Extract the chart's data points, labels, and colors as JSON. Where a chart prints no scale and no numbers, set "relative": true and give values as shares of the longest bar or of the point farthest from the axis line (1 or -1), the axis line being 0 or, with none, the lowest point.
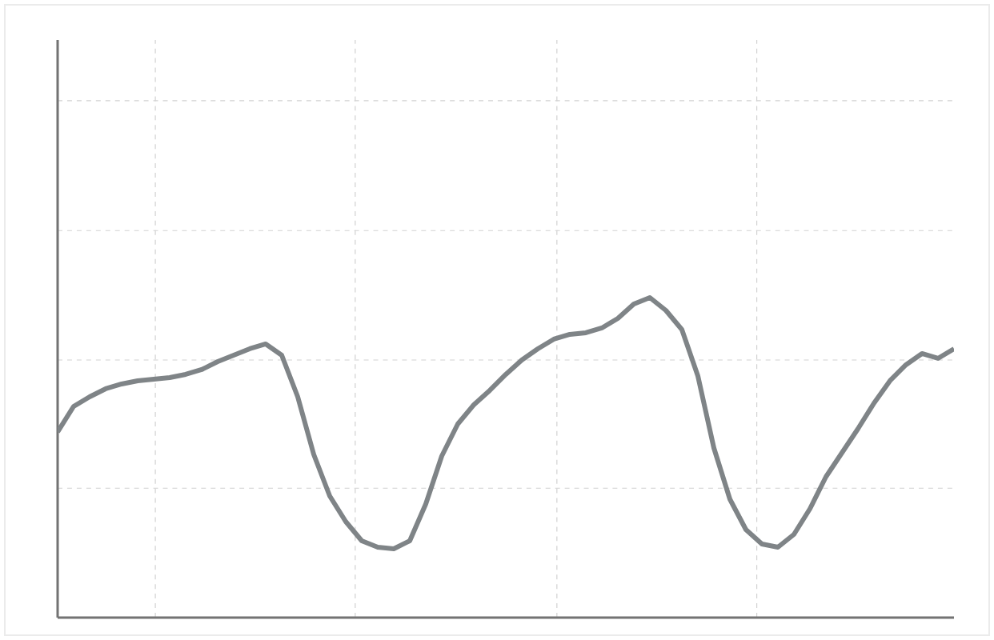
{
  "chart_data": {
    "type": "line",
    "relative": true,
    "grid": true,
    "color": "#7f8487",
    "categories": [
      null,
      null,
      null,
      null,
      null,
      null,
      null,
      null,
      null,
      null,
      null,
      null,
      null,
      null,
      null,
      null,
      null,
      null,
      null,
      null,
      null,
      null,
      null,
      null,
      null,
      null,
      null,
      null,
      null,
      null,
      null,
      null,
      null,
      null,
      null,
      null,
      null,
      null,
      null,
      null,
      null,
      null,
      null,
      null,
      null,
      null,
      null,
      null,
      null,
      null,
      null,
      null,
      null,
      null,
      null,
      null,
      null
    ],
    "values": [
      0.58,
      0.66,
      0.69,
      0.715,
      0.73,
      0.74,
      0.745,
      0.75,
      0.76,
      0.775,
      0.8,
      0.82,
      0.84,
      0.855,
      0.82,
      0.69,
      0.51,
      0.38,
      0.3,
      0.24,
      0.22,
      0.215,
      0.24,
      0.355,
      0.505,
      0.605,
      0.665,
      0.71,
      0.76,
      0.805,
      0.84,
      0.87,
      0.885,
      0.89,
      0.905,
      0.935,
      0.98,
      1.0,
      0.96,
      0.9,
      0.755,
      0.53,
      0.37,
      0.275,
      0.23,
      0.22,
      0.26,
      0.34,
      0.44,
      0.515,
      0.59,
      0.67,
      0.74,
      0.79,
      0.825,
      0.81,
      0.84
    ]
  }
}
